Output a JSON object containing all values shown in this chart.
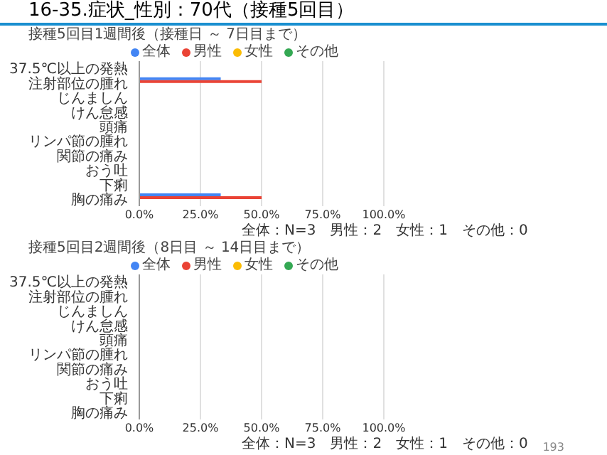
{
  "chart_data": [
    {
      "type": "bar",
      "orientation": "horizontal",
      "title": "16-35.症状_性別：70代（接種5回目）",
      "subtitle": "接種5回目1週間後（接種日 ～ 7日目まで）",
      "categories": [
        "37.5℃以上の発熱",
        "注射部位の腫れ",
        "じんましん",
        "けん怠感",
        "頭痛",
        "リンパ節の腫れ",
        "関節の痛み",
        "おう吐",
        "下痢",
        "胸の痛み"
      ],
      "series": [
        {
          "name": "全体",
          "color": "#4285f4",
          "values": [
            0,
            33.3,
            0,
            0,
            0,
            0,
            0,
            0,
            0,
            33.3
          ]
        },
        {
          "name": "男性",
          "color": "#ea4335",
          "values": [
            0,
            50,
            0,
            0,
            0,
            0,
            0,
            0,
            0,
            50
          ]
        },
        {
          "name": "女性",
          "color": "#fbbc04",
          "values": [
            0,
            0,
            0,
            0,
            0,
            0,
            0,
            0,
            0,
            0
          ]
        },
        {
          "name": "その他",
          "color": "#34a853",
          "values": [
            0,
            0,
            0,
            0,
            0,
            0,
            0,
            0,
            0,
            0
          ]
        }
      ],
      "xlim": [
        0,
        100
      ],
      "xticks": [
        {
          "value": 0,
          "label": "0.0%"
        },
        {
          "value": 25,
          "label": "25.0%"
        },
        {
          "value": 50,
          "label": "50.0%"
        },
        {
          "value": 75,
          "label": "75.0%"
        },
        {
          "value": 100,
          "label": "100.0%"
        }
      ],
      "grid": "x",
      "legend": "top",
      "annotations": [
        "全体：N=3　男性：2　女性：1　その他：0"
      ]
    },
    {
      "type": "bar",
      "orientation": "horizontal",
      "title": "接種5回目2週間後（8日目 ～ 14日目まで）",
      "categories": [
        "37.5℃以上の発熱",
        "注射部位の腫れ",
        "じんましん",
        "けん怠感",
        "頭痛",
        "リンパ節の腫れ",
        "関節の痛み",
        "おう吐",
        "下痢",
        "胸の痛み"
      ],
      "series": [
        {
          "name": "全体",
          "color": "#4285f4",
          "values": [
            0,
            0,
            0,
            0,
            0,
            0,
            0,
            0,
            0,
            0
          ]
        },
        {
          "name": "男性",
          "color": "#ea4335",
          "values": [
            0,
            0,
            0,
            0,
            0,
            0,
            0,
            0,
            0,
            0
          ]
        },
        {
          "name": "女性",
          "color": "#fbbc04",
          "values": [
            0,
            0,
            0,
            0,
            0,
            0,
            0,
            0,
            0,
            0
          ]
        },
        {
          "name": "その他",
          "color": "#34a853",
          "values": [
            0,
            0,
            0,
            0,
            0,
            0,
            0,
            0,
            0,
            0
          ]
        }
      ],
      "xlim": [
        0,
        100
      ],
      "xticks": [
        {
          "value": 0,
          "label": "0.0%"
        },
        {
          "value": 25,
          "label": "25.0%"
        },
        {
          "value": 50,
          "label": "50.0%"
        },
        {
          "value": 75,
          "label": "75.0%"
        },
        {
          "value": 100,
          "label": "100.0%"
        }
      ],
      "grid": "x",
      "legend": "top",
      "annotations": [
        "全体：N=3　男性：2　女性：1　その他：0",
        "193"
      ]
    }
  ]
}
